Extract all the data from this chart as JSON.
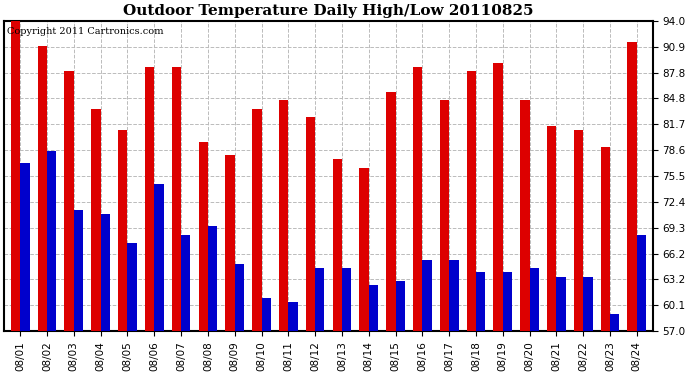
{
  "title": "Outdoor Temperature Daily High/Low 20110825",
  "copyright": "Copyright 2011 Cartronics.com",
  "dates": [
    "08/01",
    "08/02",
    "08/03",
    "08/04",
    "08/05",
    "08/06",
    "08/07",
    "08/08",
    "08/09",
    "08/10",
    "08/11",
    "08/12",
    "08/13",
    "08/14",
    "08/15",
    "08/16",
    "08/17",
    "08/18",
    "08/19",
    "08/20",
    "08/21",
    "08/22",
    "08/23",
    "08/24"
  ],
  "highs": [
    94.0,
    91.0,
    88.0,
    83.5,
    81.0,
    88.5,
    88.5,
    79.5,
    78.0,
    83.5,
    84.5,
    82.5,
    77.5,
    76.5,
    85.5,
    88.5,
    84.5,
    88.0,
    89.0,
    84.5,
    81.5,
    81.0,
    79.0,
    91.5
  ],
  "lows": [
    77.0,
    78.5,
    71.5,
    71.0,
    67.5,
    74.5,
    68.5,
    69.5,
    65.0,
    61.0,
    60.5,
    64.5,
    64.5,
    62.5,
    63.0,
    65.5,
    65.5,
    64.0,
    64.0,
    64.5,
    63.5,
    63.5,
    59.0,
    68.5
  ],
  "high_color": "#dd0000",
  "low_color": "#0000cc",
  "background_color": "#ffffff",
  "plot_bg_color": "#ffffff",
  "grid_color": "#bbbbbb",
  "ylim": [
    57.0,
    94.0
  ],
  "yticks": [
    57.0,
    60.1,
    63.2,
    66.2,
    69.3,
    72.4,
    75.5,
    78.6,
    81.7,
    84.8,
    87.8,
    90.9,
    94.0
  ],
  "title_fontsize": 11,
  "copyright_fontsize": 7,
  "tick_fontsize": 7.5,
  "bar_width": 0.35,
  "figwidth": 6.9,
  "figheight": 3.75,
  "dpi": 100
}
